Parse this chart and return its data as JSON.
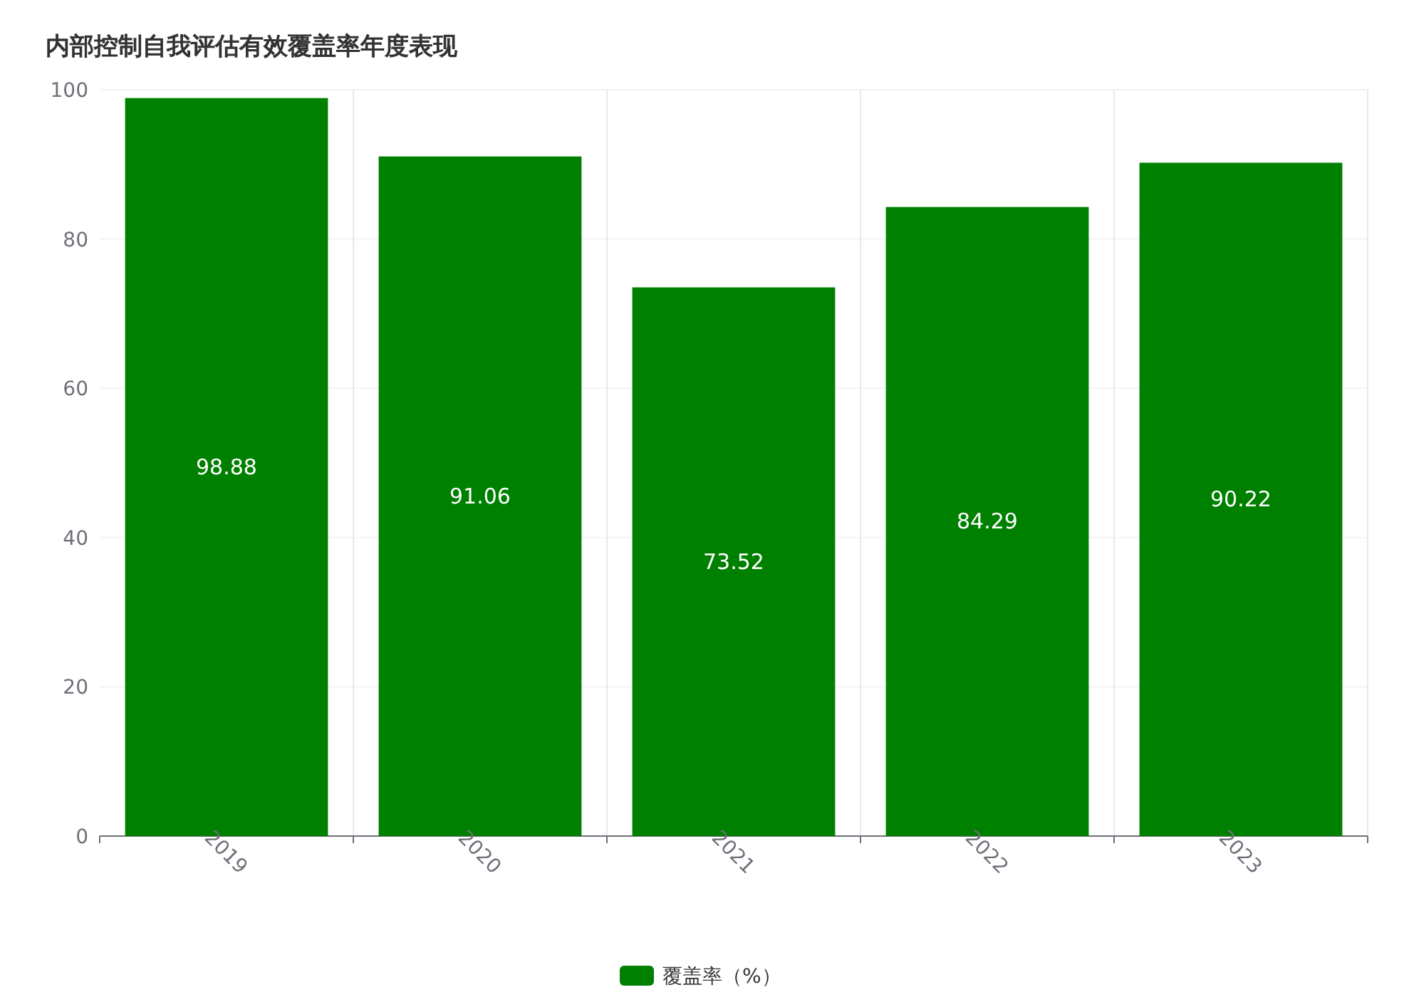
{
  "chart_data": {
    "type": "bar",
    "title": "内部控制自我评估有效覆盖率年度表现",
    "categories": [
      "2019",
      "2020",
      "2021",
      "2022",
      "2023"
    ],
    "series": [
      {
        "name": "覆盖率（%）",
        "color": "#008000",
        "values": [
          98.88,
          91.06,
          73.52,
          84.29,
          90.22
        ]
      }
    ],
    "ylim": [
      0,
      100
    ],
    "yticks": [
      0,
      20,
      40,
      60,
      80,
      100
    ],
    "grid": true,
    "legend": "bottom",
    "data_labels": true
  }
}
